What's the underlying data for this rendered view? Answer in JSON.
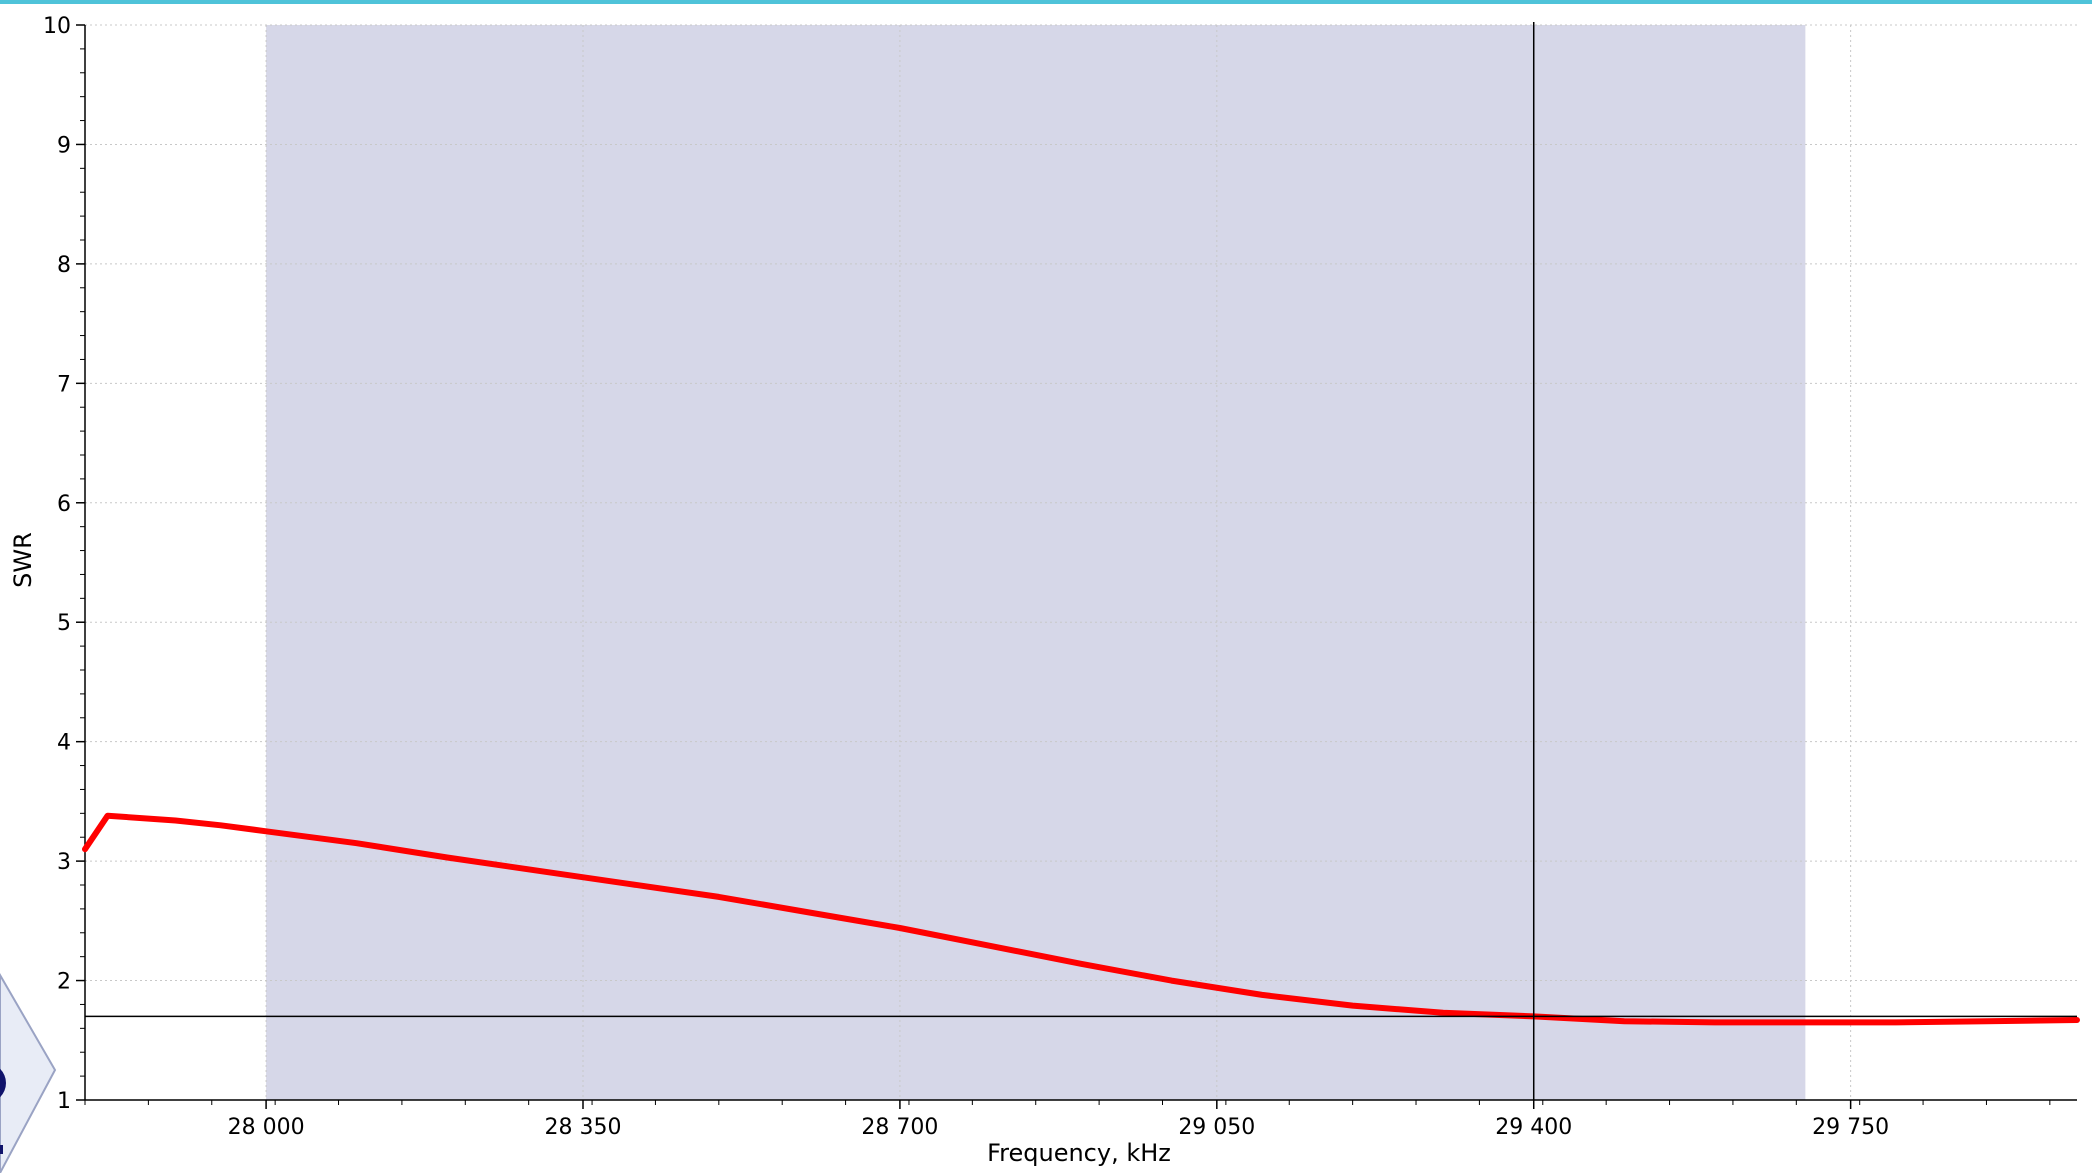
{
  "colors": {
    "accent_top": "#4fc3d9",
    "band_fill": "#d6d7e8",
    "curve": "#ff0000",
    "cursor": "#000000",
    "grid": "#c8c8c8",
    "axis": "#000000",
    "logo_fill": "#e8ecf6",
    "logo_stroke": "#9aa3c4",
    "logo_dot": "#10136b"
  },
  "icons": {
    "corner_logo": "app-logo-icon"
  },
  "chart_data": {
    "type": "line",
    "xlabel": "Frequency, kHz",
    "ylabel": "SWR",
    "xlim": [
      27800,
      30000
    ],
    "ylim": [
      1,
      10
    ],
    "x_tick_values": [
      28000,
      28350,
      28700,
      29050,
      29400,
      29750
    ],
    "x_tick_labels": [
      "28 000",
      "28 350",
      "28 700",
      "29 050",
      "29 400",
      "29 750"
    ],
    "y_ticks": [
      1,
      2,
      3,
      4,
      5,
      6,
      7,
      8,
      9,
      10
    ],
    "grid": true,
    "legend": "none",
    "band": {
      "x_start": 28000,
      "x_end": 29700
    },
    "cursor": {
      "x": 29400,
      "y": 1.7
    },
    "series": [
      {
        "x": [
          27800,
          27825,
          27900,
          27950,
          28000,
          28100,
          28200,
          28300,
          28400,
          28500,
          28600,
          28700,
          28800,
          28900,
          29000,
          29100,
          29200,
          29300,
          29400,
          29500,
          29600,
          29700,
          29800,
          29900,
          30000
        ],
        "y": [
          3.1,
          3.38,
          3.34,
          3.3,
          3.25,
          3.15,
          3.03,
          2.92,
          2.81,
          2.7,
          2.57,
          2.44,
          2.29,
          2.14,
          2.0,
          1.88,
          1.79,
          1.73,
          1.7,
          1.66,
          1.65,
          1.65,
          1.65,
          1.66,
          1.67
        ]
      }
    ]
  }
}
